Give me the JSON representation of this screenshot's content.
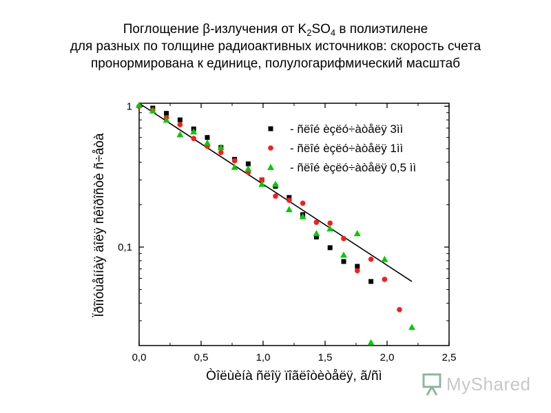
{
  "title": {
    "line1_prefix": "Поглощение β-излучения от K",
    "line1_sub1": "2",
    "line1_mid": "SO",
    "line1_sub2": "4",
    "line1_suffix": " в полиэтилене",
    "line2": "для разных по толщине радиоактивных источников: скорость счета",
    "line3": "пронормирована к единице, полулогарифмический масштаб"
  },
  "watermark": {
    "text": "MyShared",
    "icon": "presentation-board-icon"
  },
  "chart_data": {
    "type": "scatter",
    "xlabel": "Òîëùèíà ñëîÿ ïîãëîòèòåëÿ, ã/ñì",
    "ylabel": "Ïðîïóùåííàÿ äîëÿ ñêîðîñòè ñ÷åòà",
    "xlim": [
      0,
      2.5
    ],
    "ylim": [
      0.02,
      1.05
    ],
    "yscale": "log",
    "x_ticks": [
      0.0,
      0.5,
      1.0,
      1.5,
      2.0,
      2.5
    ],
    "x_tick_labels": [
      "0,0",
      "0,5",
      "1,0",
      "1,5",
      "2,0",
      "2,5"
    ],
    "y_ticks": [
      0.1,
      1
    ],
    "y_tick_labels": [
      "0,1",
      "1"
    ],
    "legend_position": "top-right",
    "series": [
      {
        "name": "ñëîé èçëó÷àòåëÿ 3ìì",
        "marker": "square",
        "color": "#000000",
        "points": [
          [
            0.11,
            0.97
          ],
          [
            0.22,
            0.89
          ],
          [
            0.33,
            0.8
          ],
          [
            0.44,
            0.69
          ],
          [
            0.55,
            0.6
          ],
          [
            0.66,
            0.51
          ],
          [
            0.77,
            0.42
          ],
          [
            0.88,
            0.39
          ],
          [
            0.99,
            0.3
          ],
          [
            1.1,
            0.27
          ],
          [
            1.21,
            0.225
          ],
          [
            1.32,
            0.17
          ],
          [
            1.43,
            0.118
          ],
          [
            1.54,
            0.099
          ],
          [
            1.65,
            0.079
          ],
          [
            1.76,
            0.073
          ],
          [
            1.87,
            0.057
          ]
        ]
      },
      {
        "name": "ñëîé èçëó÷àòåëÿ 1ìì",
        "marker": "circle",
        "color": "#ff1a1a",
        "points": [
          [
            0.0,
            1.0
          ],
          [
            0.11,
            0.94
          ],
          [
            0.22,
            0.83
          ],
          [
            0.33,
            0.74
          ],
          [
            0.44,
            0.59
          ],
          [
            0.55,
            0.52
          ],
          [
            0.66,
            0.47
          ],
          [
            0.77,
            0.41
          ],
          [
            0.88,
            0.34
          ],
          [
            0.99,
            0.3
          ],
          [
            1.1,
            0.23
          ],
          [
            1.21,
            0.215
          ],
          [
            1.32,
            0.205
          ],
          [
            1.43,
            0.15
          ],
          [
            1.54,
            0.148
          ],
          [
            1.65,
            0.115
          ],
          [
            1.76,
            0.068
          ],
          [
            1.87,
            0.082
          ],
          [
            1.98,
            0.059
          ],
          [
            2.1,
            0.036
          ]
        ]
      },
      {
        "name": "ñëîé èçëó÷àòåëÿ 0,5 ìì",
        "marker": "triangle",
        "color": "#00cc00",
        "points": [
          [
            0.0,
            1.02
          ],
          [
            0.11,
            0.93
          ],
          [
            0.22,
            0.8
          ],
          [
            0.33,
            0.63
          ],
          [
            0.44,
            0.66
          ],
          [
            0.55,
            0.55
          ],
          [
            0.66,
            0.51
          ],
          [
            0.77,
            0.37
          ],
          [
            0.88,
            0.36
          ],
          [
            0.99,
            0.28
          ],
          [
            1.1,
            0.28
          ],
          [
            1.21,
            0.185
          ],
          [
            1.32,
            0.165
          ],
          [
            1.43,
            0.125
          ],
          [
            1.54,
            0.135
          ],
          [
            1.65,
            0.088
          ],
          [
            1.76,
            0.125
          ],
          [
            1.87,
            0.021
          ],
          [
            1.98,
            0.082
          ],
          [
            2.2,
            0.027
          ]
        ]
      }
    ],
    "fit_line": {
      "color": "#000000",
      "x": [
        0.0,
        2.2
      ],
      "y": [
        1.05,
        0.057
      ]
    }
  }
}
